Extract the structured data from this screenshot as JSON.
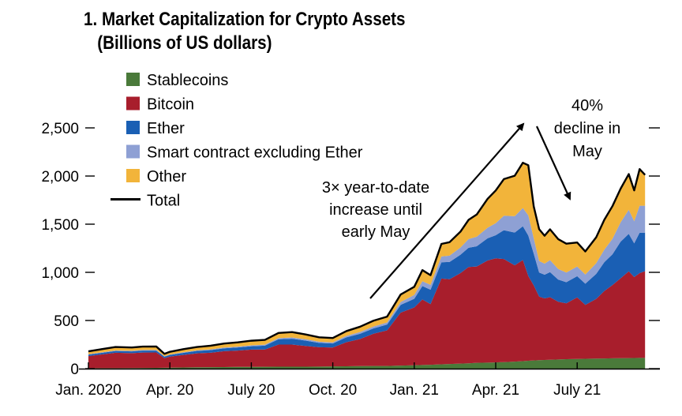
{
  "chart_data": {
    "type": "area",
    "stacked": true,
    "title": "1. Market Capitalization for Crypto Assets",
    "subtitle": "(Billions of US dollars)",
    "xlabel": "",
    "ylabel": "",
    "ylim": [
      0,
      2500
    ],
    "yticks": [
      0,
      500,
      1000,
      1500,
      2000,
      2500
    ],
    "ytick_labels": [
      "0",
      "500",
      "1,000",
      "1,500",
      "2,000",
      "2,500"
    ],
    "xtick_labels": [
      "Jan. 2020",
      "Apr. 20",
      "July 20",
      "Oct. 20",
      "Jan. 21",
      "Apr. 21",
      "July 21"
    ],
    "xtick_months": [
      0,
      3,
      6,
      9,
      12,
      15,
      18
    ],
    "x_months": [
      0,
      1,
      1.6,
      2,
      2.5,
      2.8,
      3,
      3.5,
      4,
      4.5,
      5,
      5.5,
      6,
      6.5,
      7,
      7.5,
      8,
      8.5,
      9,
      9.5,
      10,
      10.5,
      11,
      11.5,
      12,
      12.3,
      12.6,
      13,
      13.3,
      13.7,
      14,
      14.3,
      14.7,
      15,
      15.3,
      15.7,
      16,
      16.2,
      16.4,
      16.6,
      16.8,
      17,
      17.3,
      17.6,
      18,
      18.3,
      18.7,
      19,
      19.3,
      19.6,
      19.9,
      20.1,
      20.3,
      20.5
    ],
    "series": [
      {
        "name": "Stablecoins",
        "color": "#4a7a3a",
        "values": [
          5,
          5,
          6,
          7,
          8,
          9,
          10,
          12,
          14,
          15,
          16,
          18,
          18,
          19,
          20,
          20,
          21,
          22,
          24,
          25,
          27,
          28,
          28,
          32,
          35,
          38,
          40,
          45,
          48,
          52,
          55,
          60,
          63,
          65,
          68,
          73,
          78,
          82,
          85,
          88,
          90,
          92,
          95,
          98,
          100,
          102,
          104,
          106,
          108,
          109,
          110,
          111,
          112,
          112
        ]
      },
      {
        "name": "Bitcoin",
        "color": "#a81e2c",
        "values": [
          125,
          160,
          155,
          160,
          160,
          100,
          115,
          130,
          145,
          150,
          165,
          170,
          180,
          180,
          230,
          230,
          215,
          200,
          195,
          250,
          280,
          335,
          370,
          550,
          600,
          680,
          630,
          890,
          880,
          940,
          1000,
          1000,
          1060,
          1080,
          1070,
          1000,
          1050,
          880,
          780,
          660,
          640,
          650,
          600,
          580,
          640,
          560,
          620,
          700,
          760,
          830,
          900,
          840,
          880,
          900
        ]
      },
      {
        "name": "Ether",
        "color": "#1a5fb4",
        "values": [
          15,
          18,
          18,
          20,
          20,
          15,
          17,
          22,
          25,
          28,
          30,
          32,
          35,
          40,
          55,
          60,
          55,
          45,
          42,
          50,
          55,
          55,
          60,
          80,
          90,
          140,
          150,
          170,
          180,
          190,
          200,
          210,
          230,
          240,
          300,
          340,
          350,
          420,
          330,
          250,
          245,
          260,
          230,
          220,
          220,
          220,
          260,
          300,
          320,
          380,
          390,
          350,
          420,
          400
        ]
      },
      {
        "name": "Smart contract excluding Ether",
        "color": "#8ea0d4",
        "values": [
          5,
          6,
          6,
          7,
          7,
          5,
          5,
          6,
          6,
          7,
          8,
          8,
          9,
          10,
          12,
          14,
          14,
          13,
          12,
          15,
          18,
          20,
          22,
          30,
          40,
          50,
          50,
          60,
          65,
          75,
          90,
          100,
          110,
          125,
          150,
          170,
          190,
          210,
          160,
          120,
          115,
          125,
          110,
          100,
          100,
          95,
          110,
          130,
          160,
          200,
          250,
          230,
          280,
          280
        ]
      },
      {
        "name": "Other",
        "color": "#f2b43a",
        "values": [
          30,
          36,
          35,
          35,
          35,
          25,
          28,
          32,
          35,
          38,
          42,
          45,
          48,
          50,
          53,
          56,
          50,
          45,
          45,
          50,
          55,
          60,
          60,
          78,
          85,
          115,
          100,
          130,
          140,
          165,
          200,
          230,
          300,
          340,
          380,
          420,
          470,
          520,
          330,
          330,
          290,
          320,
          310,
          300,
          250,
          240,
          270,
          310,
          340,
          350,
          370,
          320,
          380,
          320
        ]
      }
    ],
    "total": {
      "name": "Total",
      "color": "#000000"
    },
    "annotations": {
      "trend_up": [
        "3× year-to-date",
        "increase until",
        "early May"
      ],
      "trend_down": [
        "40%",
        "decline in",
        "May"
      ]
    },
    "legend_position": "top-left",
    "grid": false
  }
}
